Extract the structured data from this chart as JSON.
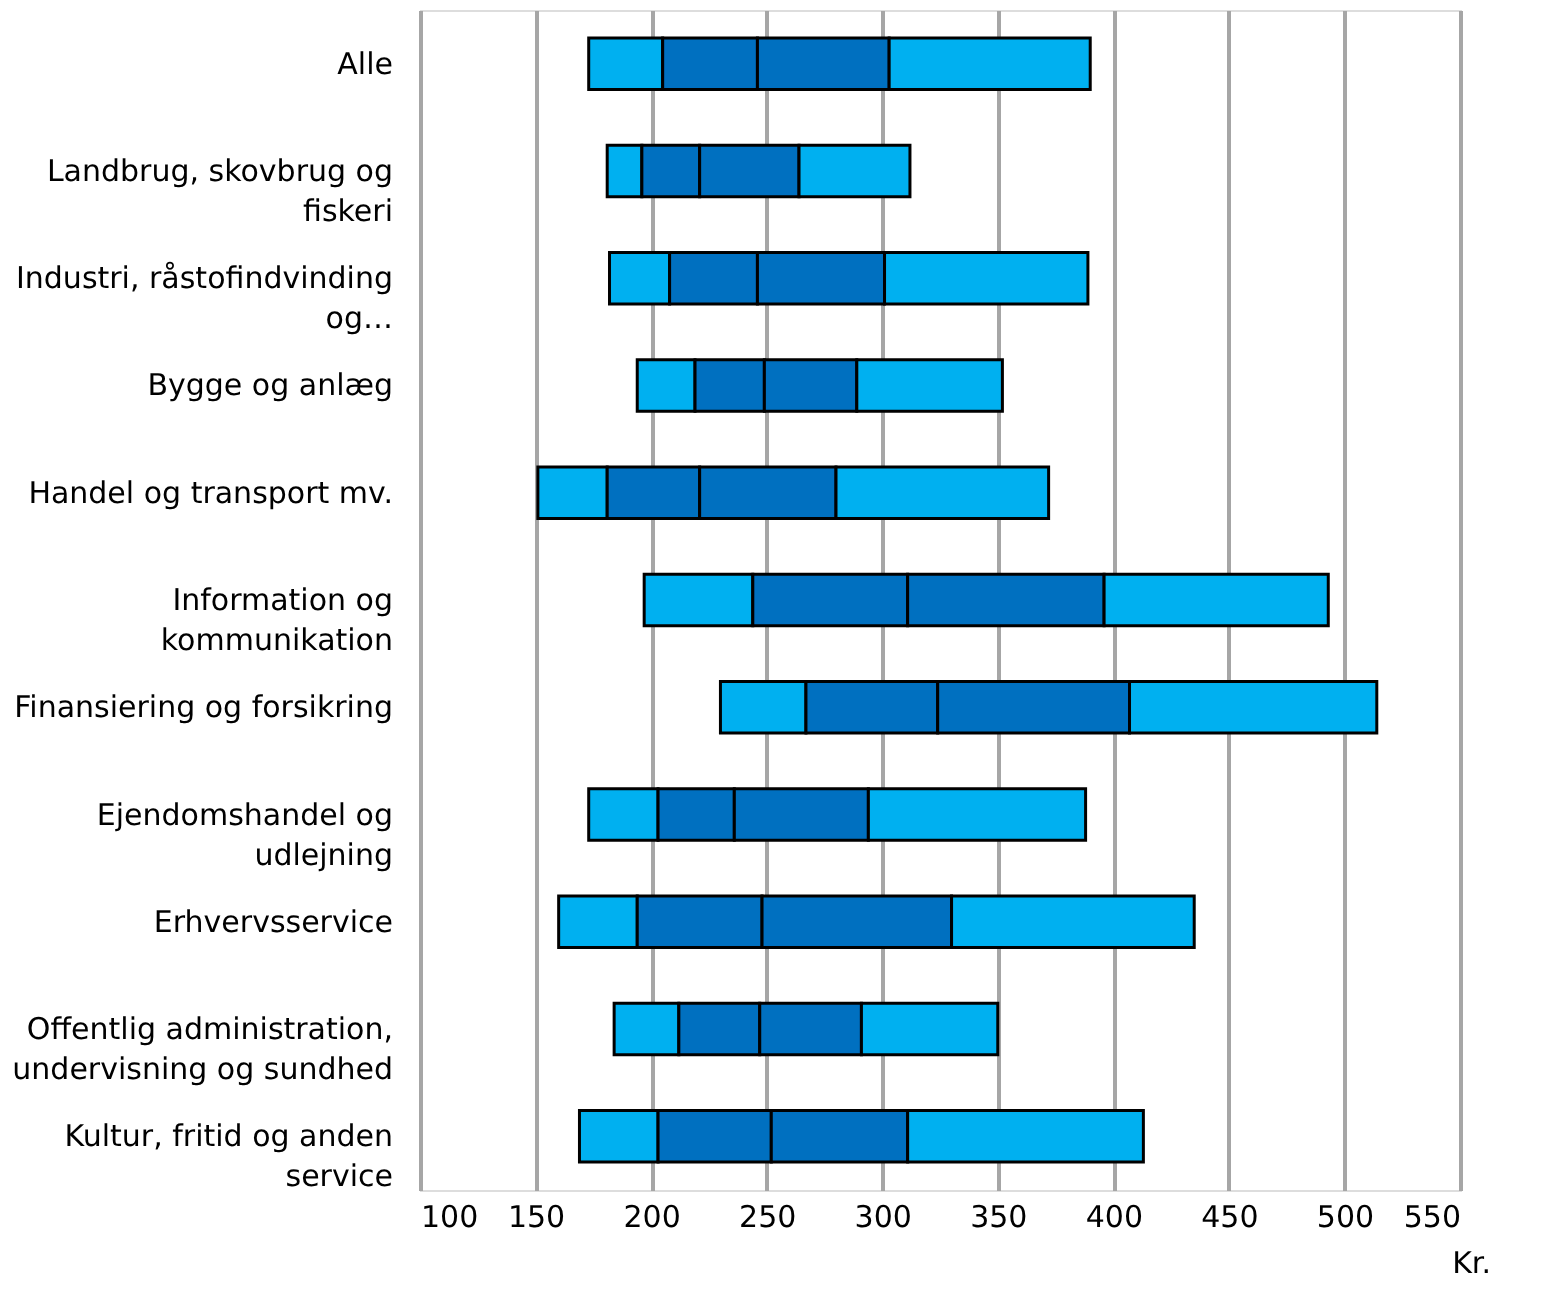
{
  "chart_data": {
    "type": "bar",
    "orientation": "horizontal",
    "categories": [
      "Alle",
      "Landbrug, skovbrug og fiskeri",
      "Industri, råstofindvinding og…",
      "Bygge og anlæg",
      "Handel og transport mv.",
      "Information og kommunikation",
      "Finansiering og forsikring",
      "Ejendomshandel og udlejning",
      "Erhvervsservice",
      "Offentlig administration, undervisning og sundhed",
      "Kultur, fritid og anden service"
    ],
    "series": [
      {
        "color": "#00b0f0",
        "base": [
          173,
          181,
          182,
          194,
          151,
          197,
          230,
          173,
          160,
          184,
          169
        ],
        "values": [
          32,
          15,
          26,
          25,
          30,
          47,
          37,
          30,
          34,
          28,
          34
        ]
      },
      {
        "color": "#0070c0",
        "base": [
          205,
          196,
          208,
          219,
          181,
          244,
          267,
          203,
          194,
          212,
          203
        ],
        "values": [
          41,
          25,
          38,
          30,
          40,
          67,
          57,
          33,
          54,
          35,
          49
        ]
      },
      {
        "color": "#0070c0",
        "base": [
          246,
          221,
          246,
          249,
          221,
          311,
          324,
          236,
          248,
          247,
          252
        ],
        "values": [
          57,
          43,
          55,
          40,
          59,
          85,
          83,
          58,
          82,
          44,
          59
        ]
      },
      {
        "color": "#00b0f0",
        "base": [
          303,
          264,
          301,
          289,
          280,
          396,
          407,
          294,
          330,
          291,
          311
        ],
        "values": [
          87,
          48,
          88,
          63,
          92,
          97,
          107,
          94,
          105,
          59,
          102
        ]
      }
    ],
    "xlabel": "Kr.",
    "xlim": [
      100,
      550
    ],
    "xticks": [
      100,
      150,
      200,
      250,
      300,
      350,
      400,
      450,
      500,
      550
    ],
    "grid": "x"
  }
}
